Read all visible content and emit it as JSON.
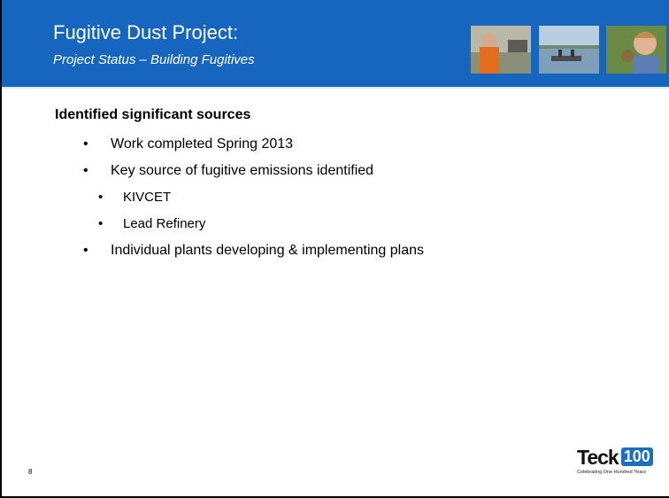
{
  "header": {
    "title": "Fugitive Dust Project:",
    "subtitle": "Project Status – Building Fugitives"
  },
  "body": {
    "heading": "Identified significant sources",
    "bullets": [
      {
        "text": "Work completed Spring 2013",
        "subitems": []
      },
      {
        "text": "Key source of fugitive emissions identified",
        "subitems": [
          "KIVCET",
          "Lead Refinery"
        ]
      },
      {
        "text": "Individual plants developing & implementing plans",
        "subitems": []
      }
    ]
  },
  "footer": {
    "page_number": "8",
    "logo": {
      "name": "Teck",
      "badge": "100",
      "tagline": "Celebrating One Hundred Years"
    }
  }
}
